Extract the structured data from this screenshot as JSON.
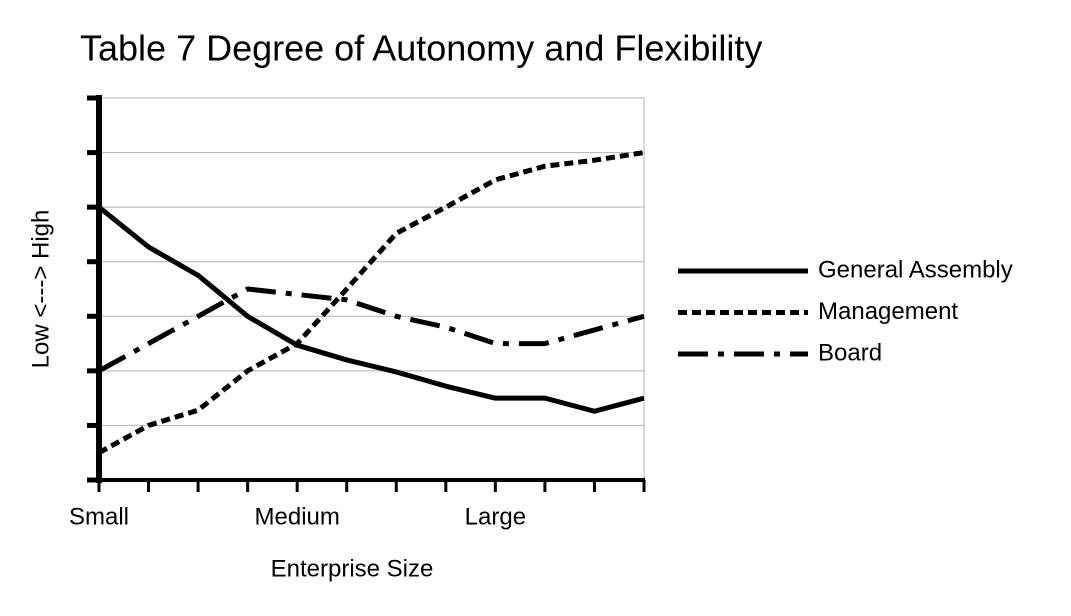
{
  "chart_data": {
    "type": "line",
    "title": "Table 7 Degree of Autonomy and Flexibility",
    "x_label": "Enterprise Size",
    "y_label": "Low <---> High",
    "categories": [
      "Small",
      null,
      null,
      null,
      "Medium",
      null,
      null,
      null,
      "Large",
      null,
      null,
      null
    ],
    "series": [
      {
        "name": "General Assembly",
        "color": "#000000",
        "values": [
          5.0,
          4.27,
          3.75,
          3.0,
          2.47,
          2.2,
          1.98,
          1.72,
          1.5,
          1.5,
          1.26,
          1.5
        ]
      },
      {
        "name": "Management",
        "color": "#000000",
        "values": [
          0.5,
          1.0,
          1.28,
          2.0,
          2.5,
          3.5,
          4.52,
          5.0,
          5.5,
          5.75,
          5.86,
          6.0
        ]
      },
      {
        "name": "Board",
        "color": "#000000",
        "values": [
          2.0,
          2.5,
          3.0,
          3.5,
          3.4,
          3.3,
          3.0,
          2.8,
          2.5,
          2.5,
          2.75,
          3.0
        ]
      }
    ],
    "ylim": [
      0,
      7
    ],
    "yticks": [
      0,
      1,
      2,
      3,
      4,
      5,
      6,
      7
    ],
    "grid": true,
    "legend": "right"
  }
}
